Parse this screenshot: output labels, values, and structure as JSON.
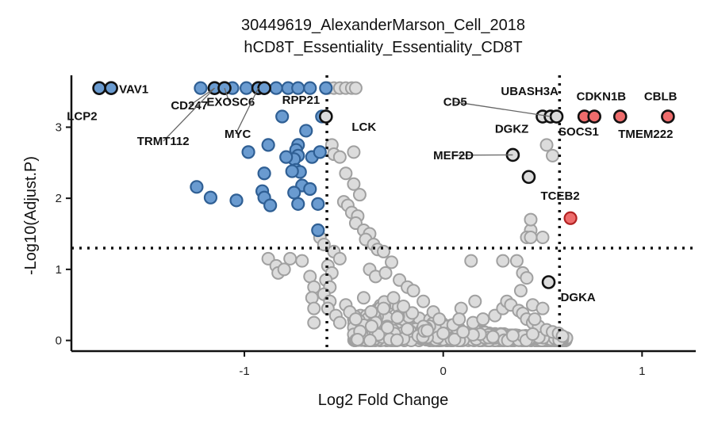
{
  "chart_data": {
    "type": "scatter",
    "title": "30449619_AlexanderMarson_Cell_2018",
    "subtitle": "hCD8T_Essentiality_Essentiality_CD8T",
    "xlabel": "Log2 Fold Change",
    "ylabel": "-Log10(Adjust.P)",
    "xlim": [
      -1.87,
      1.27
    ],
    "ylim": [
      -0.15,
      3.73
    ],
    "xticks": [
      -1,
      0,
      1
    ],
    "xtick_labels": [
      "-1",
      "0",
      "1"
    ],
    "yticks": [
      0,
      1,
      2,
      3
    ],
    "ytick_labels": [
      "0",
      "1",
      "2",
      "3"
    ],
    "grid": false,
    "thresholds": {
      "x": [
        -0.585,
        0.585
      ],
      "y": 1.3
    },
    "colors": {
      "down": "#6a9bd0",
      "down_edge": "#2f5f94",
      "up": "#ee6c6c",
      "up_edge": "#b22222",
      "ns": "#dcdcdc",
      "ns_edge": "#a0a0a0",
      "highlight_edge": "#111111"
    },
    "down_points": [
      [
        -1.73,
        3.55
      ],
      [
        -1.67,
        3.55
      ],
      [
        -1.22,
        3.55
      ],
      [
        -1.15,
        3.55
      ],
      [
        -1.1,
        3.55
      ],
      [
        -1.06,
        3.55
      ],
      [
        -0.99,
        3.55
      ],
      [
        -0.93,
        3.55
      ],
      [
        -0.9,
        3.55
      ],
      [
        -0.84,
        3.55
      ],
      [
        -0.78,
        3.55
      ],
      [
        -0.73,
        3.55
      ],
      [
        -0.67,
        3.55
      ],
      [
        -0.59,
        3.55
      ],
      [
        -0.81,
        3.15
      ],
      [
        -0.61,
        3.15
      ],
      [
        -0.69,
        2.95
      ],
      [
        -0.98,
        2.65
      ],
      [
        -0.88,
        2.75
      ],
      [
        -0.73,
        2.75
      ],
      [
        -0.74,
        2.68
      ],
      [
        -0.73,
        2.6
      ],
      [
        -0.75,
        2.55
      ],
      [
        -0.79,
        2.58
      ],
      [
        -0.66,
        2.58
      ],
      [
        -0.62,
        2.65
      ],
      [
        -0.74,
        2.4
      ],
      [
        -0.72,
        2.37
      ],
      [
        -0.76,
        2.38
      ],
      [
        -0.9,
        2.35
      ],
      [
        -0.71,
        2.18
      ],
      [
        -0.67,
        2.13
      ],
      [
        -1.24,
        2.16
      ],
      [
        -1.17,
        2.01
      ],
      [
        -1.04,
        1.97
      ],
      [
        -0.91,
        2.1
      ],
      [
        -0.9,
        2.01
      ],
      [
        -0.87,
        1.9
      ],
      [
        -0.75,
        2.08
      ],
      [
        -0.73,
        1.92
      ],
      [
        -0.63,
        1.92
      ],
      [
        -0.63,
        1.55
      ]
    ],
    "up_points": [
      [
        0.71,
        3.15
      ],
      [
        0.76,
        3.15
      ],
      [
        0.89,
        3.15
      ],
      [
        1.13,
        3.15
      ],
      [
        0.64,
        1.72
      ]
    ],
    "highlight_points": [
      [
        -1.73,
        3.55
      ],
      [
        -1.67,
        3.55
      ],
      [
        -1.15,
        3.55
      ],
      [
        -1.1,
        3.55
      ],
      [
        -0.93,
        3.55
      ],
      [
        -0.9,
        3.55
      ],
      [
        -0.59,
        3.15
      ],
      [
        0.5,
        3.15
      ],
      [
        0.54,
        3.15
      ],
      [
        0.57,
        3.15
      ],
      [
        0.71,
        3.15
      ],
      [
        0.76,
        3.15
      ],
      [
        0.89,
        3.15
      ],
      [
        1.13,
        3.15
      ],
      [
        0.35,
        2.61
      ],
      [
        0.43,
        2.3
      ],
      [
        0.53,
        0.82
      ]
    ],
    "ns_points": [
      [
        -0.58,
        3.55
      ],
      [
        -0.55,
        3.55
      ],
      [
        -0.52,
        3.55
      ],
      [
        -0.49,
        3.55
      ],
      [
        -0.46,
        3.55
      ],
      [
        -0.44,
        3.55
      ],
      [
        -0.56,
        2.75
      ],
      [
        -0.55,
        2.62
      ],
      [
        -0.52,
        2.58
      ],
      [
        -0.45,
        2.65
      ],
      [
        -0.49,
        2.35
      ],
      [
        -0.45,
        2.2
      ],
      [
        -0.42,
        2.05
      ],
      [
        -0.5,
        1.95
      ],
      [
        -0.48,
        1.9
      ],
      [
        -0.46,
        1.8
      ],
      [
        -0.43,
        1.75
      ],
      [
        -0.44,
        1.65
      ],
      [
        -0.4,
        1.55
      ],
      [
        -0.37,
        1.5
      ],
      [
        -0.39,
        1.42
      ],
      [
        -0.35,
        1.35
      ],
      [
        -0.33,
        1.28
      ],
      [
        -0.3,
        1.25
      ],
      [
        -0.55,
        1.25
      ],
      [
        -0.52,
        1.15
      ],
      [
        -0.58,
        1.05
      ],
      [
        -0.56,
        0.95
      ],
      [
        -0.59,
        0.85
      ],
      [
        -0.57,
        0.75
      ],
      [
        -0.6,
        0.65
      ],
      [
        -0.57,
        0.55
      ],
      [
        -0.58,
        0.45
      ],
      [
        -0.54,
        0.35
      ],
      [
        -0.52,
        0.25
      ],
      [
        -0.49,
        0.5
      ],
      [
        -0.47,
        0.4
      ],
      [
        -0.88,
        1.15
      ],
      [
        -0.84,
        1.05
      ],
      [
        -0.83,
        0.95
      ],
      [
        -0.8,
        1.0
      ],
      [
        -0.77,
        1.15
      ],
      [
        -0.71,
        1.12
      ],
      [
        -0.67,
        0.9
      ],
      [
        -0.65,
        0.75
      ],
      [
        -0.66,
        0.6
      ],
      [
        -0.65,
        0.45
      ],
      [
        -0.65,
        0.25
      ],
      [
        -0.62,
        1.45
      ],
      [
        -0.6,
        1.35
      ],
      [
        -0.37,
        1.0
      ],
      [
        -0.34,
        0.9
      ],
      [
        -0.29,
        0.95
      ],
      [
        -0.26,
        1.1
      ],
      [
        -0.22,
        0.85
      ],
      [
        -0.18,
        0.75
      ],
      [
        -0.15,
        0.7
      ],
      [
        -0.05,
        0.4
      ],
      [
        -0.02,
        0.3
      ],
      [
        0.05,
        0.22
      ],
      [
        0.09,
        0.45
      ],
      [
        0.15,
        0.25
      ],
      [
        0.2,
        0.3
      ],
      [
        0.26,
        0.35
      ],
      [
        0.3,
        0.45
      ],
      [
        0.32,
        0.55
      ],
      [
        0.34,
        0.5
      ],
      [
        0.38,
        0.42
      ],
      [
        0.4,
        0.38
      ],
      [
        0.42,
        0.3
      ],
      [
        0.45,
        0.25
      ],
      [
        0.48,
        0.2
      ],
      [
        0.52,
        0.15
      ],
      [
        0.55,
        0.12
      ],
      [
        0.58,
        0.1
      ],
      [
        0.6,
        0.06
      ],
      [
        0.15,
        0.08
      ],
      [
        0.25,
        0.05
      ],
      [
        0.35,
        0.07
      ],
      [
        0.45,
        0.09
      ],
      [
        0.1,
        0.12
      ],
      [
        0.16,
        0.55
      ],
      [
        0.3,
        1.12
      ],
      [
        0.37,
        1.12
      ],
      [
        0.4,
        0.95
      ],
      [
        0.39,
        0.7
      ],
      [
        0.45,
        0.5
      ],
      [
        0.5,
        0.45
      ],
      [
        0.46,
        0.3
      ],
      [
        0.42,
        0.88
      ],
      [
        0.52,
        2.75
      ],
      [
        0.55,
        2.6
      ],
      [
        0.44,
        1.55
      ],
      [
        0.42,
        1.45
      ],
      [
        0.44,
        1.45
      ],
      [
        0.5,
        1.45
      ],
      [
        0.44,
        1.7
      ],
      [
        0.14,
        1.12
      ],
      [
        0.08,
        0.3
      ],
      [
        -0.1,
        0.55
      ],
      [
        -0.2,
        0.48
      ],
      [
        -0.3,
        0.45
      ],
      [
        -0.4,
        0.6
      ],
      [
        -0.44,
        0.3
      ],
      [
        -0.36,
        0.2
      ],
      [
        -0.28,
        0.18
      ],
      [
        -0.18,
        0.16
      ],
      [
        -0.08,
        0.14
      ],
      [
        0.0,
        0.1
      ],
      [
        -0.25,
        0.6
      ]
    ],
    "ns_cloud": {
      "x_range": [
        -0.45,
        0.62
      ],
      "center_x": -0.28,
      "y_max": 0.62
    },
    "labels": [
      {
        "text": "VAV1",
        "x": -1.63,
        "y": 3.48,
        "anchor": "start"
      },
      {
        "text": "LCP2",
        "x": -1.74,
        "y": 3.1,
        "anchor": "end"
      },
      {
        "text": "CD247",
        "x": -1.37,
        "y": 3.25,
        "anchor": "start",
        "point": [
          -1.15,
          3.55
        ]
      },
      {
        "text": "EXOSC6",
        "x": -1.19,
        "y": 3.3,
        "anchor": "start",
        "point": [
          -1.1,
          3.55
        ]
      },
      {
        "text": "TRMT112",
        "x": -1.54,
        "y": 2.75,
        "anchor": "start",
        "point": [
          -1.15,
          3.55
        ]
      },
      {
        "text": "MYC",
        "x": -1.1,
        "y": 2.85,
        "anchor": "start",
        "point": [
          -0.93,
          3.55
        ]
      },
      {
        "text": "RPP21",
        "x": -0.81,
        "y": 3.33,
        "anchor": "start"
      },
      {
        "text": "LCK",
        "x": -0.46,
        "y": 2.95,
        "anchor": "start"
      },
      {
        "text": "CD5",
        "x": 0.0,
        "y": 3.3,
        "anchor": "start",
        "point": [
          0.54,
          3.15
        ]
      },
      {
        "text": "UBASH3A",
        "x": 0.29,
        "y": 3.45,
        "anchor": "start"
      },
      {
        "text": "CDKN1B",
        "x": 0.67,
        "y": 3.38,
        "anchor": "start"
      },
      {
        "text": "CBLB",
        "x": 1.01,
        "y": 3.38,
        "anchor": "start"
      },
      {
        "text": "DGKZ",
        "x": 0.26,
        "y": 2.92,
        "anchor": "start"
      },
      {
        "text": "SOCS1",
        "x": 0.58,
        "y": 2.88,
        "anchor": "start"
      },
      {
        "text": "TMEM222",
        "x": 0.88,
        "y": 2.85,
        "anchor": "start"
      },
      {
        "text": "MEF2D",
        "x": -0.05,
        "y": 2.55,
        "anchor": "start",
        "point": [
          0.35,
          2.61
        ]
      },
      {
        "text": "TCEB2",
        "x": 0.49,
        "y": 1.98,
        "anchor": "start"
      },
      {
        "text": "DGKA",
        "x": 0.59,
        "y": 0.55,
        "anchor": "start"
      }
    ]
  }
}
